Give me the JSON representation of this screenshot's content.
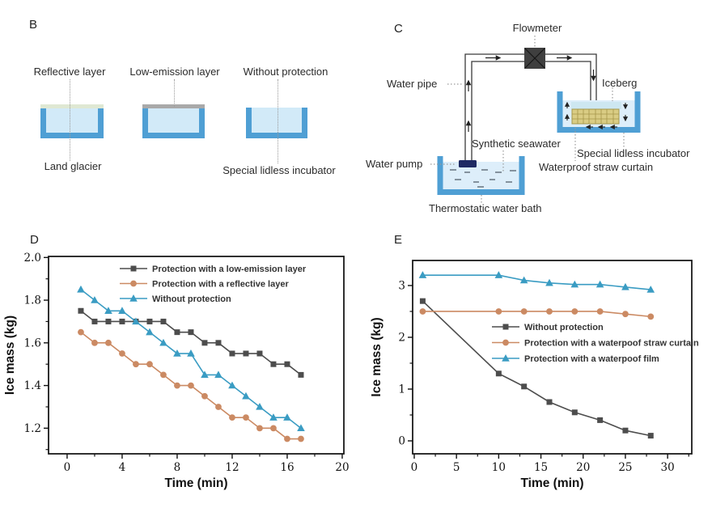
{
  "panels": {
    "b": {
      "letter": "B",
      "top_labels": [
        "Reflective layer",
        "Low-emission layer",
        "Without protection"
      ],
      "bottom_labels": [
        "Land glacier",
        "Special lidless incubator"
      ]
    },
    "c": {
      "letter": "C",
      "labels": {
        "flowmeter": "Flowmeter",
        "water_pipe": "Water pipe",
        "iceberg": "Iceberg",
        "water_pump": "Water pump",
        "synthetic_seawater": "Synthetic seawater",
        "special_lidless_incubator": "Special lidless incubator",
        "waterproof_straw_curtain": "Waterproof straw curtain",
        "thermostatic_water_bath": "Thermostatic water bath"
      }
    },
    "d": {
      "letter": "D"
    },
    "e": {
      "letter": "E"
    }
  },
  "colors": {
    "container_wall": "#4f9fd4",
    "water": "#d2eaf8",
    "reflective_layer": "#dfe8d3",
    "low_emission_layer": "#a9a9a9",
    "flowmeter_box": "#3f3f3f",
    "water_pump": "#1f2a63",
    "straw_curtain": "#d9cc84",
    "straw_grid_line": "#a59749",
    "iceberg_strip": "#cde7f1",
    "series_gray": "#4d4d4d",
    "series_orange": "#cb8a63",
    "series_blue": "#3a9cc3"
  },
  "chart_data": [
    {
      "id": "chart-d",
      "type": "line",
      "title": "",
      "xlabel": "Time (min)",
      "ylabel": "Ice mass (kg)",
      "x": [
        1,
        2,
        3,
        4,
        5,
        6,
        7,
        8,
        9,
        10,
        11,
        12,
        13,
        14,
        15,
        16,
        17
      ],
      "series": [
        {
          "name": "Protection with a low-emission layer",
          "marker": "square",
          "color": "#4d4d4d",
          "values": [
            1.75,
            1.7,
            1.7,
            1.7,
            1.7,
            1.7,
            1.7,
            1.65,
            1.65,
            1.6,
            1.6,
            1.55,
            1.55,
            1.55,
            1.5,
            1.5,
            1.45
          ]
        },
        {
          "name": "Protection with a reflective layer",
          "marker": "circle",
          "color": "#cb8a63",
          "values": [
            1.65,
            1.6,
            1.6,
            1.55,
            1.5,
            1.5,
            1.45,
            1.4,
            1.4,
            1.35,
            1.3,
            1.25,
            1.25,
            1.2,
            1.2,
            1.15,
            1.15
          ]
        },
        {
          "name": "Without protection",
          "marker": "triangle",
          "color": "#3a9cc3",
          "values": [
            1.85,
            1.8,
            1.75,
            1.75,
            1.7,
            1.65,
            1.6,
            1.55,
            1.55,
            1.45,
            1.45,
            1.4,
            1.35,
            1.3,
            1.25,
            1.25,
            1.2
          ]
        }
      ],
      "xlim": [
        -1.35,
        20.12
      ],
      "ylim": [
        1.08,
        2.005
      ],
      "xticks": [
        0,
        4,
        8,
        12,
        16,
        20
      ],
      "xtick_labels": [
        "0",
        "4",
        "8",
        "12",
        "16",
        "20"
      ],
      "xminor": [
        2,
        6,
        10,
        14,
        18
      ],
      "yticks": [
        1.2,
        1.4,
        1.6,
        1.8,
        2.0
      ],
      "ytick_labels": [
        "1.2",
        "1.4",
        "1.6",
        "1.8",
        "2.0"
      ],
      "yminor": [
        1.1,
        1.3,
        1.5,
        1.7,
        1.9
      ],
      "grid": false,
      "legend_position": "top-inside"
    },
    {
      "id": "chart-e",
      "type": "line",
      "title": "",
      "xlabel": "Time (min)",
      "ylabel": "Ice mass (kg)",
      "x": [
        1,
        10,
        13,
        16,
        19,
        22,
        25,
        28
      ],
      "series": [
        {
          "name": "Without protection",
          "marker": "square",
          "color": "#4d4d4d",
          "values": [
            2.7,
            1.3,
            1.05,
            0.75,
            0.55,
            0.4,
            0.2,
            0.1
          ]
        },
        {
          "name": "Protection with a waterpoof straw curtain",
          "marker": "circle",
          "color": "#cb8a63",
          "values": [
            2.5,
            2.5,
            2.5,
            2.5,
            2.5,
            2.5,
            2.45,
            2.4
          ]
        },
        {
          "name": "Protection with a waterpoof film",
          "marker": "triangle",
          "color": "#3a9cc3",
          "values": [
            3.2,
            3.2,
            3.1,
            3.05,
            3.02,
            3.02,
            2.97,
            2.92
          ]
        }
      ],
      "xlim": [
        -0.19,
        32.86
      ],
      "ylim": [
        -0.25,
        3.484
      ],
      "xticks": [
        0,
        5,
        10,
        15,
        20,
        25,
        30
      ],
      "xtick_labels": [
        "0",
        "5",
        "10",
        "15",
        "20",
        "25",
        "30"
      ],
      "xminor": [
        2.5,
        7.5,
        12.5,
        17.5,
        22.5,
        27.5,
        32.5
      ],
      "yticks": [
        0,
        1,
        2,
        3
      ],
      "ytick_labels": [
        "0",
        "1",
        "2",
        "3"
      ],
      "yminor": [
        0.5,
        1.5,
        2.5
      ],
      "grid": false,
      "legend_position": "center-inside"
    }
  ]
}
